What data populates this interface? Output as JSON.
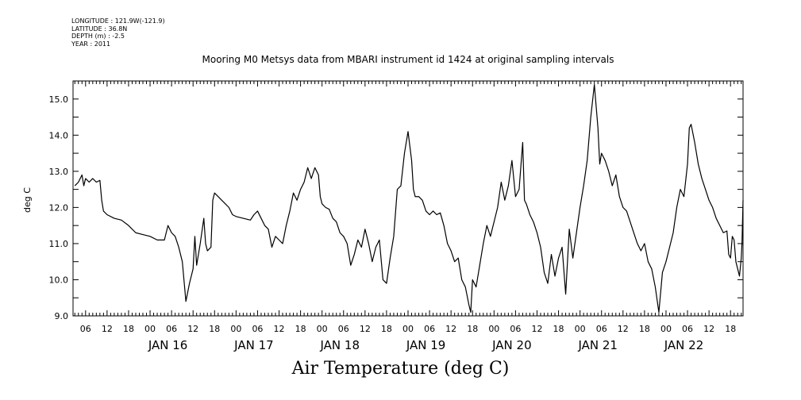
{
  "meta": [
    "LONGITUDE : 121.9W(-121.9)",
    "LATITUDE : 36.8N",
    "DEPTH (m) : -2.5",
    "YEAR : 2011"
  ],
  "chart_data": {
    "type": "line",
    "title": "Mooring M0 Metsys data from MBARI instrument id 1424 at original sampling intervals",
    "xlabel": "Air Temperature (deg C)",
    "ylabel": "deg C",
    "x_unit": "hours since 00 JAN 16",
    "xlim": [
      -21.5,
      165.5
    ],
    "ylim": [
      9.0,
      15.5
    ],
    "y_ticks": [
      9.0,
      10.0,
      11.0,
      12.0,
      13.0,
      14.0,
      15.0
    ],
    "y_tick_labels": [
      "9.0",
      "10.0",
      "11.0",
      "12.0",
      "13.0",
      "14.0",
      "15.0"
    ],
    "x_hour_ticks": [
      0,
      6,
      12,
      18
    ],
    "x_hour_labels": [
      "00",
      "06",
      "12",
      "18"
    ],
    "day_labels": [
      "JAN 16",
      "JAN 17",
      "JAN 18",
      "JAN 19",
      "JAN 20",
      "JAN 21",
      "JAN 22"
    ],
    "grid": false,
    "series": [
      {
        "points": [
          [
            -21,
            12.6
          ],
          [
            -20,
            12.7
          ],
          [
            -19,
            12.9
          ],
          [
            -18.5,
            12.6
          ],
          [
            -18,
            12.8
          ],
          [
            -17,
            12.7
          ],
          [
            -16,
            12.8
          ],
          [
            -15,
            12.7
          ],
          [
            -14,
            12.75
          ],
          [
            -13.5,
            12.2
          ],
          [
            -13,
            11.9
          ],
          [
            -12,
            11.8
          ],
          [
            -10,
            11.7
          ],
          [
            -8,
            11.65
          ],
          [
            -6,
            11.5
          ],
          [
            -4,
            11.3
          ],
          [
            -2,
            11.25
          ],
          [
            0,
            11.2
          ],
          [
            2,
            11.1
          ],
          [
            4,
            11.1
          ],
          [
            5,
            11.5
          ],
          [
            5.5,
            11.4
          ],
          [
            6,
            11.3
          ],
          [
            7,
            11.2
          ],
          [
            8,
            10.9
          ],
          [
            9,
            10.5
          ],
          [
            10,
            9.4
          ],
          [
            11,
            9.9
          ],
          [
            12,
            10.3
          ],
          [
            12.5,
            11.2
          ],
          [
            13,
            10.4
          ],
          [
            14,
            11.0
          ],
          [
            15,
            11.7
          ],
          [
            15.5,
            11.0
          ],
          [
            16,
            10.8
          ],
          [
            17,
            10.9
          ],
          [
            17.5,
            12.2
          ],
          [
            18,
            12.4
          ],
          [
            19,
            12.3
          ],
          [
            20,
            12.2
          ],
          [
            21,
            12.1
          ],
          [
            22,
            12.0
          ],
          [
            23,
            11.8
          ],
          [
            24,
            11.75
          ],
          [
            26,
            11.7
          ],
          [
            28,
            11.65
          ],
          [
            29,
            11.8
          ],
          [
            30,
            11.9
          ],
          [
            31,
            11.7
          ],
          [
            32,
            11.5
          ],
          [
            33,
            11.4
          ],
          [
            34,
            10.9
          ],
          [
            35,
            11.2
          ],
          [
            36,
            11.1
          ],
          [
            37,
            11.0
          ],
          [
            38,
            11.5
          ],
          [
            39,
            11.9
          ],
          [
            40,
            12.4
          ],
          [
            41,
            12.2
          ],
          [
            42,
            12.5
          ],
          [
            43,
            12.7
          ],
          [
            44,
            13.1
          ],
          [
            45,
            12.8
          ],
          [
            46,
            13.1
          ],
          [
            47,
            12.9
          ],
          [
            47.5,
            12.3
          ],
          [
            48,
            12.1
          ],
          [
            49,
            12.0
          ],
          [
            50,
            11.95
          ],
          [
            51,
            11.7
          ],
          [
            52,
            11.6
          ],
          [
            53,
            11.3
          ],
          [
            54,
            11.2
          ],
          [
            55,
            11.0
          ],
          [
            56,
            10.4
          ],
          [
            57,
            10.7
          ],
          [
            58,
            11.1
          ],
          [
            59,
            10.9
          ],
          [
            60,
            11.4
          ],
          [
            61,
            11.0
          ],
          [
            62,
            10.5
          ],
          [
            63,
            10.9
          ],
          [
            64,
            11.1
          ],
          [
            65,
            10.0
          ],
          [
            66,
            9.9
          ],
          [
            67,
            10.6
          ],
          [
            68,
            11.2
          ],
          [
            69,
            12.5
          ],
          [
            70,
            12.6
          ],
          [
            71,
            13.5
          ],
          [
            72,
            14.1
          ],
          [
            73,
            13.3
          ],
          [
            73.5,
            12.5
          ],
          [
            74,
            12.3
          ],
          [
            75,
            12.3
          ],
          [
            76,
            12.2
          ],
          [
            77,
            11.9
          ],
          [
            78,
            11.8
          ],
          [
            79,
            11.9
          ],
          [
            80,
            11.8
          ],
          [
            81,
            11.85
          ],
          [
            82,
            11.5
          ],
          [
            83,
            11.0
          ],
          [
            84,
            10.8
          ],
          [
            85,
            10.5
          ],
          [
            86,
            10.6
          ],
          [
            87,
            10.0
          ],
          [
            88,
            9.8
          ],
          [
            89,
            9.3
          ],
          [
            89.5,
            9.1
          ],
          [
            90,
            10.0
          ],
          [
            91,
            9.8
          ],
          [
            92,
            10.4
          ],
          [
            93,
            11.0
          ],
          [
            94,
            11.5
          ],
          [
            95,
            11.2
          ],
          [
            96,
            11.6
          ],
          [
            97,
            12.0
          ],
          [
            98,
            12.7
          ],
          [
            99,
            12.2
          ],
          [
            100,
            12.6
          ],
          [
            101,
            13.3
          ],
          [
            102,
            12.3
          ],
          [
            103,
            12.5
          ],
          [
            104,
            13.8
          ],
          [
            104.5,
            12.2
          ],
          [
            105,
            12.1
          ],
          [
            106,
            11.8
          ],
          [
            107,
            11.6
          ],
          [
            108,
            11.3
          ],
          [
            109,
            10.9
          ],
          [
            110,
            10.2
          ],
          [
            111,
            9.9
          ],
          [
            112,
            10.7
          ],
          [
            113,
            10.1
          ],
          [
            114,
            10.6
          ],
          [
            115,
            10.9
          ],
          [
            116,
            9.6
          ],
          [
            117,
            11.4
          ],
          [
            118,
            10.6
          ],
          [
            119,
            11.3
          ],
          [
            120,
            12.0
          ],
          [
            121,
            12.6
          ],
          [
            122,
            13.3
          ],
          [
            123,
            14.5
          ],
          [
            124,
            15.4
          ],
          [
            125,
            14.2
          ],
          [
            125.5,
            13.2
          ],
          [
            126,
            13.5
          ],
          [
            127,
            13.3
          ],
          [
            128,
            13.0
          ],
          [
            129,
            12.6
          ],
          [
            130,
            12.9
          ],
          [
            131,
            12.3
          ],
          [
            132,
            12.0
          ],
          [
            133,
            11.9
          ],
          [
            134,
            11.6
          ],
          [
            135,
            11.3
          ],
          [
            136,
            11.0
          ],
          [
            137,
            10.8
          ],
          [
            138,
            11.0
          ],
          [
            139,
            10.5
          ],
          [
            140,
            10.3
          ],
          [
            141,
            9.8
          ],
          [
            142,
            9.1
          ],
          [
            143,
            10.2
          ],
          [
            144,
            10.5
          ],
          [
            145,
            10.9
          ],
          [
            146,
            11.3
          ],
          [
            147,
            12.0
          ],
          [
            148,
            12.5
          ],
          [
            149,
            12.3
          ],
          [
            150,
            13.2
          ],
          [
            150.5,
            14.2
          ],
          [
            151,
            14.3
          ],
          [
            152,
            13.8
          ],
          [
            153,
            13.2
          ],
          [
            154,
            12.8
          ],
          [
            155,
            12.5
          ],
          [
            156,
            12.2
          ],
          [
            157,
            12.0
          ],
          [
            158,
            11.7
          ],
          [
            159,
            11.5
          ],
          [
            160,
            11.3
          ],
          [
            161,
            11.35
          ],
          [
            161.5,
            10.7
          ],
          [
            162,
            10.6
          ],
          [
            162.5,
            11.2
          ],
          [
            163,
            11.1
          ],
          [
            163.5,
            10.5
          ],
          [
            164,
            10.3
          ],
          [
            164.5,
            10.1
          ],
          [
            165,
            10.6
          ],
          [
            165.2,
            11.0
          ],
          [
            165.4,
            11.8
          ],
          [
            165.5,
            12.2
          ]
        ]
      }
    ]
  }
}
